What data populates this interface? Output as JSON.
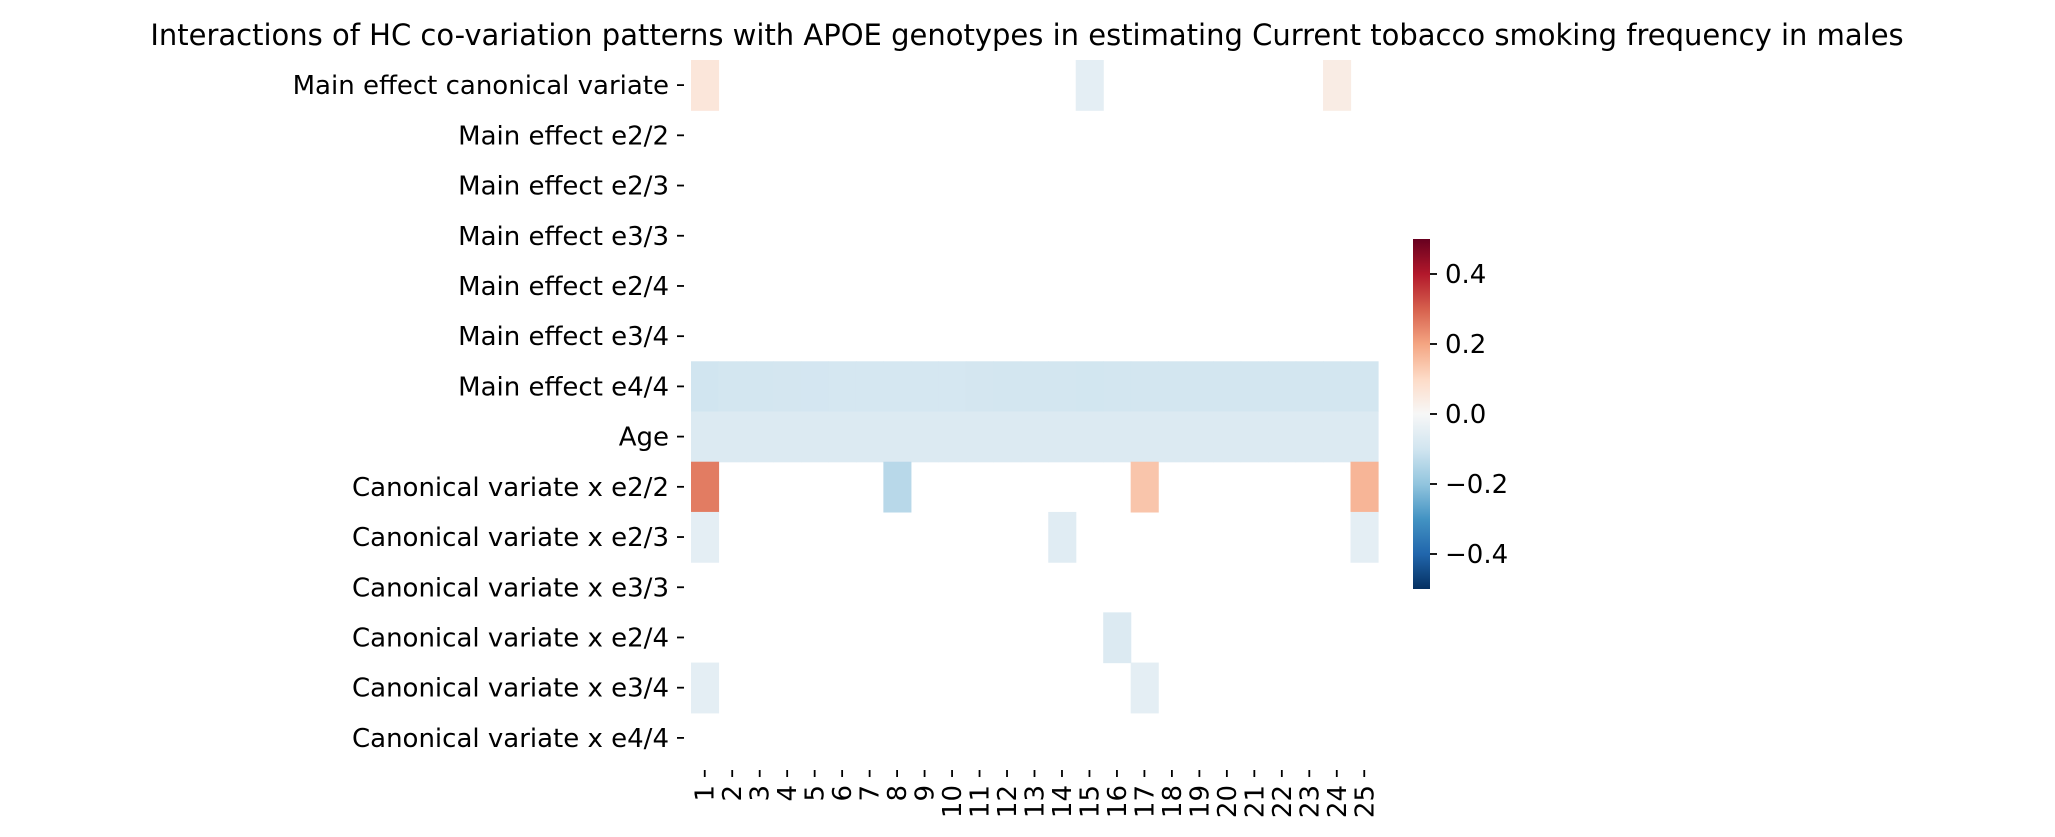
{
  "chart_data": {
    "type": "heatmap",
    "title": "Interactions of HC co-variation patterns with APOE genotypes in estimating Current tobacco smoking frequency in males",
    "xlabel": "",
    "ylabel": "",
    "x_categories": [
      "1",
      "2",
      "3",
      "4",
      "5",
      "6",
      "7",
      "8",
      "9",
      "10",
      "11",
      "12",
      "13",
      "14",
      "15",
      "16",
      "17",
      "18",
      "19",
      "20",
      "21",
      "22",
      "23",
      "24",
      "25"
    ],
    "y_categories": [
      "Main effect canonical variate",
      "Main effect e2/2",
      "Main effect e2/3",
      "Main effect e3/3",
      "Main effect e2/4",
      "Main effect e3/4",
      "Main effect e4/4",
      "Age",
      "Canonical variate x e2/2",
      "Canonical variate x e2/3",
      "Canonical variate x e3/3",
      "Canonical variate x e2/4",
      "Canonical variate x e3/4",
      "Canonical variate x e4/4"
    ],
    "values": [
      [
        0.06,
        null,
        null,
        null,
        null,
        null,
        null,
        null,
        null,
        null,
        null,
        null,
        null,
        null,
        -0.05,
        null,
        null,
        null,
        null,
        null,
        null,
        null,
        null,
        0.04,
        null
      ],
      [
        null,
        null,
        null,
        null,
        null,
        null,
        null,
        null,
        null,
        null,
        null,
        null,
        null,
        null,
        null,
        null,
        null,
        null,
        null,
        null,
        null,
        null,
        null,
        null,
        null
      ],
      [
        null,
        null,
        null,
        null,
        null,
        null,
        null,
        null,
        null,
        null,
        null,
        null,
        null,
        null,
        null,
        null,
        null,
        null,
        null,
        null,
        null,
        null,
        null,
        null,
        null
      ],
      [
        null,
        null,
        null,
        null,
        null,
        null,
        null,
        null,
        null,
        null,
        null,
        null,
        null,
        null,
        null,
        null,
        null,
        null,
        null,
        null,
        null,
        null,
        null,
        null,
        null
      ],
      [
        null,
        null,
        null,
        null,
        null,
        null,
        null,
        null,
        null,
        null,
        null,
        null,
        null,
        null,
        null,
        null,
        null,
        null,
        null,
        null,
        null,
        null,
        null,
        null,
        null
      ],
      [
        null,
        null,
        null,
        null,
        null,
        null,
        null,
        null,
        null,
        null,
        null,
        null,
        null,
        null,
        null,
        null,
        null,
        null,
        null,
        null,
        null,
        null,
        null,
        null,
        null
      ],
      [
        -0.1,
        -0.095,
        -0.095,
        -0.093,
        -0.092,
        -0.09,
        -0.09,
        -0.09,
        -0.09,
        -0.09,
        -0.093,
        -0.095,
        -0.095,
        -0.095,
        -0.097,
        -0.095,
        -0.095,
        -0.095,
        -0.095,
        -0.095,
        -0.095,
        -0.095,
        -0.095,
        -0.095,
        -0.095
      ],
      [
        -0.07,
        -0.07,
        -0.07,
        -0.07,
        -0.07,
        -0.07,
        -0.07,
        -0.07,
        -0.07,
        -0.07,
        -0.07,
        -0.07,
        -0.07,
        -0.07,
        -0.07,
        -0.07,
        -0.07,
        -0.07,
        -0.07,
        -0.07,
        -0.07,
        -0.07,
        -0.07,
        -0.07,
        -0.07
      ],
      [
        0.26,
        null,
        null,
        null,
        null,
        null,
        null,
        -0.14,
        null,
        null,
        null,
        null,
        null,
        null,
        null,
        null,
        0.14,
        null,
        null,
        null,
        null,
        null,
        null,
        null,
        0.17
      ],
      [
        -0.05,
        null,
        null,
        null,
        null,
        null,
        null,
        null,
        null,
        null,
        null,
        null,
        null,
        -0.06,
        null,
        null,
        null,
        null,
        null,
        null,
        null,
        null,
        null,
        null,
        -0.05
      ],
      [
        null,
        null,
        null,
        null,
        null,
        null,
        null,
        null,
        null,
        null,
        null,
        null,
        null,
        null,
        null,
        null,
        null,
        null,
        null,
        null,
        null,
        null,
        null,
        null,
        null
      ],
      [
        null,
        null,
        null,
        null,
        null,
        null,
        null,
        null,
        null,
        null,
        null,
        null,
        null,
        null,
        null,
        -0.07,
        null,
        null,
        null,
        null,
        null,
        null,
        null,
        null,
        null
      ],
      [
        -0.05,
        null,
        null,
        null,
        null,
        null,
        null,
        null,
        null,
        null,
        null,
        null,
        null,
        null,
        null,
        null,
        -0.05,
        null,
        null,
        null,
        null,
        null,
        null,
        null,
        null
      ],
      [
        null,
        null,
        null,
        null,
        null,
        null,
        null,
        null,
        null,
        null,
        null,
        null,
        null,
        null,
        null,
        null,
        null,
        null,
        null,
        null,
        null,
        null,
        null,
        null,
        null
      ]
    ],
    "colorscale": "RdBu_r",
    "vmin": -0.5,
    "vmax": 0.5,
    "colorbar_ticks": [
      0.4,
      0.2,
      0.0,
      -0.2,
      -0.4
    ],
    "colorbar_tick_labels": [
      "0.4",
      "0.2",
      "0.0",
      "−0.2",
      "−0.4"
    ],
    "grid": false,
    "legend": "colorbar-right"
  }
}
